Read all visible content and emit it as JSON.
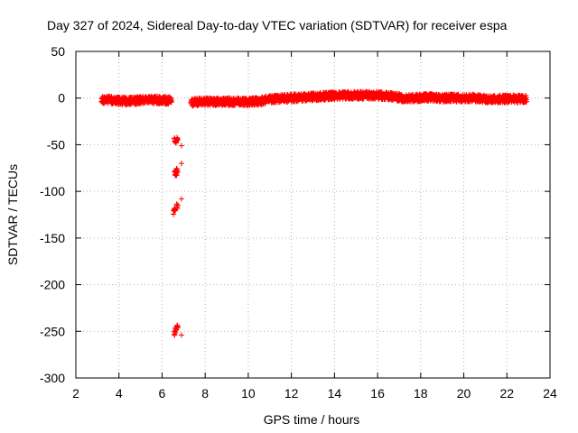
{
  "chart_data": {
    "type": "scatter",
    "title": "Day 327 of 2024, Sidereal Day-to-day VTEC variation (SDTVAR) for receiver espa",
    "xlabel": "GPS time / hours",
    "ylabel": "SDTVAR / TECUs",
    "xlim": [
      2,
      24
    ],
    "ylim": [
      -300,
      50
    ],
    "xticks": [
      2,
      4,
      6,
      8,
      10,
      12,
      14,
      16,
      18,
      20,
      22,
      24
    ],
    "yticks": [
      50,
      0,
      -50,
      -100,
      -150,
      -200,
      -250,
      -300
    ],
    "grid": true,
    "marker": "+",
    "series": [
      {
        "name": "SDTVAR",
        "color": "#ff0000",
        "band_profile": {
          "x": [
            3.2,
            3.6,
            4.0,
            4.6,
            5.2,
            5.8,
            6.5,
            7.3,
            7.8,
            8.5,
            9.2,
            10.0,
            10.6,
            11.2,
            12.0,
            12.8,
            13.6,
            14.4,
            15.2,
            16.0,
            16.6,
            17.2,
            17.8,
            18.4,
            19.0,
            19.6,
            20.4,
            21.2,
            22.0,
            22.9
          ],
          "y": [
            -2,
            -2,
            -3,
            -3,
            -2,
            -2,
            -3,
            -5,
            -4,
            -4,
            -4,
            -4,
            -3,
            -1,
            0,
            1,
            2,
            3,
            3,
            3,
            2,
            0,
            0,
            1,
            0,
            0,
            0,
            -1,
            -1,
            -1
          ],
          "spread": 4
        },
        "outliers": {
          "x": [
            6.6,
            6.65,
            6.7,
            6.9,
            6.6,
            6.65,
            6.7,
            6.9,
            6.55,
            6.6,
            6.7,
            6.9,
            6.6,
            6.65,
            6.7,
            6.9
          ],
          "y": [
            -45,
            -46,
            -44,
            -51,
            -80,
            -82,
            -78,
            -70,
            -122,
            -118,
            -116,
            -108,
            -252,
            -248,
            -246,
            -254
          ]
        }
      }
    ]
  }
}
